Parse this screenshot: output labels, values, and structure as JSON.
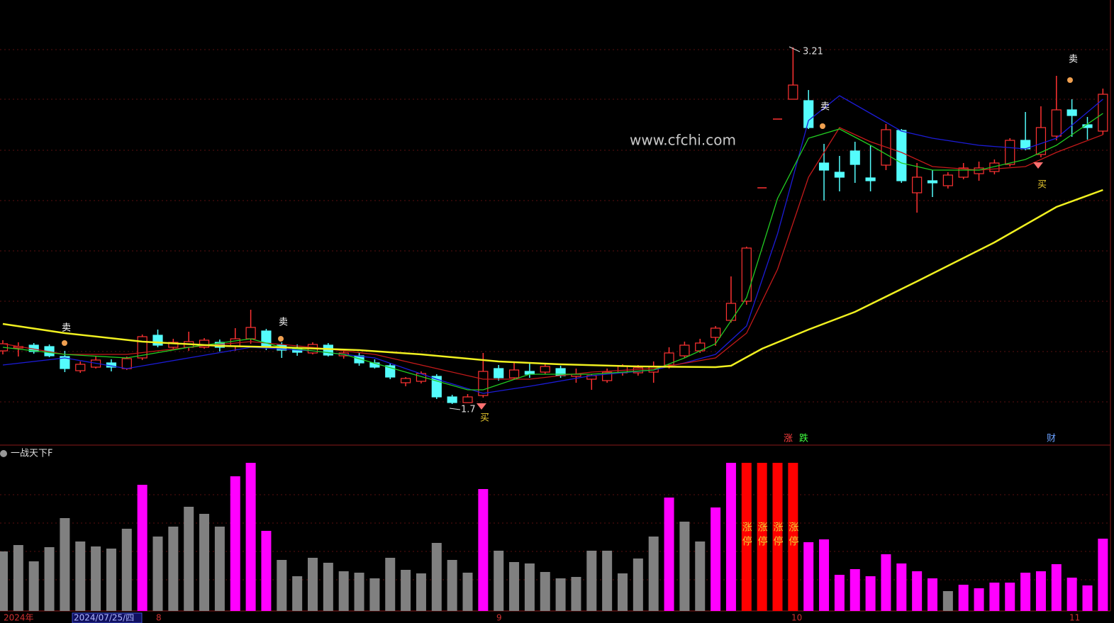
{
  "watermark": "www.cfchi.com",
  "signals": {
    "sell": "卖",
    "buy": "买"
  },
  "markers": {
    "up": "涨",
    "down": "跌",
    "finance": "财"
  },
  "date_bar": {
    "year": "2024年",
    "cursor_date": "2024/07/25/四",
    "months": [
      "8",
      "9",
      "10",
      "11"
    ]
  },
  "chart_data": [
    {
      "type": "candlestick",
      "high_label": "3.21",
      "low_label": "1.7",
      "up_color": "#ff3232",
      "down_color": "#54fcfc",
      "ylim": [
        1.526,
        3.41
      ],
      "open": [
        1.925,
        1.937,
        1.949,
        1.943,
        1.901,
        1.841,
        1.856,
        1.874,
        1.85,
        1.895,
        1.991,
        1.94,
        1.94,
        1.94,
        1.961,
        1.946,
        1.976,
        2.009,
        1.949,
        1.937,
        1.916,
        1.949,
        1.904,
        1.904,
        1.874,
        1.862,
        1.79,
        1.796,
        1.817,
        1.73,
        1.706,
        1.736,
        1.85,
        1.811,
        1.838,
        1.835,
        1.85,
        1.817,
        1.805,
        1.799,
        1.832,
        1.832,
        1.835,
        1.865,
        1.904,
        1.925,
        1.982,
        2.054,
        2.135,
        2.615,
        2.906,
        2.99,
        2.984,
        2.72,
        2.681,
        2.771,
        2.657,
        2.711,
        2.858,
        2.594,
        2.645,
        2.624,
        2.66,
        2.675,
        2.684,
        2.714,
        2.816,
        2.756,
        2.834,
        2.945,
        2.882,
        2.855
      ],
      "high": [
        1.97,
        1.961,
        1.958,
        1.952,
        1.925,
        1.88,
        1.904,
        1.889,
        1.901,
        1.994,
        2.015,
        1.976,
        2.006,
        1.979,
        1.973,
        2.021,
        2.099,
        2.018,
        1.961,
        1.952,
        1.961,
        1.958,
        1.925,
        1.916,
        1.889,
        1.874,
        1.814,
        1.838,
        1.826,
        1.739,
        1.742,
        1.916,
        1.865,
        1.874,
        1.874,
        1.871,
        1.862,
        1.85,
        1.826,
        1.85,
        1.868,
        1.865,
        1.88,
        1.94,
        1.964,
        1.976,
        2.03,
        2.24,
        2.366,
        2.615,
        2.906,
        3.21,
        3.029,
        2.801,
        2.75,
        2.81,
        2.795,
        2.885,
        2.864,
        2.72,
        2.69,
        2.681,
        2.72,
        2.726,
        2.735,
        2.825,
        2.936,
        2.96,
        3.089,
        2.99,
        2.915,
        3.035
      ],
      "low": [
        1.91,
        1.901,
        1.913,
        1.898,
        1.835,
        1.832,
        1.85,
        1.838,
        1.844,
        1.886,
        1.94,
        1.928,
        1.925,
        1.934,
        1.922,
        1.925,
        1.955,
        1.928,
        1.895,
        1.904,
        1.91,
        1.901,
        1.892,
        1.862,
        1.85,
        1.805,
        1.775,
        1.787,
        1.721,
        1.7,
        1.715,
        1.727,
        1.799,
        1.802,
        1.811,
        1.826,
        1.811,
        1.79,
        1.76,
        1.79,
        1.82,
        1.82,
        1.79,
        1.85,
        1.895,
        1.916,
        1.946,
        2.045,
        2.12,
        2.615,
        2.906,
        2.99,
        2.864,
        2.561,
        2.6,
        2.636,
        2.6,
        2.69,
        2.636,
        2.51,
        2.576,
        2.612,
        2.651,
        2.645,
        2.672,
        2.705,
        2.774,
        2.744,
        2.816,
        2.831,
        2.819,
        2.84
      ],
      "close": [
        1.955,
        1.943,
        1.922,
        1.904,
        1.85,
        1.868,
        1.886,
        1.856,
        1.892,
        1.985,
        1.949,
        1.961,
        1.964,
        1.97,
        1.94,
        1.976,
        2.024,
        1.94,
        1.928,
        1.919,
        1.952,
        1.907,
        1.916,
        1.874,
        1.856,
        1.814,
        1.808,
        1.829,
        1.73,
        1.706,
        1.73,
        1.838,
        1.811,
        1.844,
        1.826,
        1.859,
        1.82,
        1.826,
        1.82,
        1.835,
        1.859,
        1.853,
        1.859,
        1.916,
        1.949,
        1.958,
        2.021,
        2.126,
        2.36,
        2.615,
        2.906,
        3.05,
        2.87,
        2.69,
        2.66,
        2.714,
        2.645,
        2.861,
        2.645,
        2.66,
        2.636,
        2.669,
        2.699,
        2.699,
        2.72,
        2.816,
        2.78,
        2.87,
        2.945,
        2.921,
        2.87,
        3.011
      ],
      "lines": [
        {
          "color": "#1c1cd8",
          "x": [
            0,
            4,
            8,
            12,
            16,
            20,
            24,
            28,
            31,
            34,
            38,
            42,
            44,
            46,
            48,
            50,
            52,
            54,
            56,
            58,
            60,
            63,
            66,
            68,
            71
          ],
          "values": [
            1.865,
            1.895,
            1.85,
            1.895,
            1.94,
            1.925,
            1.895,
            1.805,
            1.745,
            1.775,
            1.82,
            1.844,
            1.874,
            1.91,
            2.03,
            2.42,
            2.9,
            3.005,
            2.93,
            2.855,
            2.825,
            2.795,
            2.78,
            2.825,
            2.99
          ]
        },
        {
          "color": "#c41a1a",
          "x": [
            0,
            4,
            8,
            12,
            16,
            20,
            24,
            28,
            31,
            34,
            38,
            42,
            46,
            48,
            50,
            52,
            54,
            56,
            58,
            60,
            63,
            66,
            68,
            71
          ],
          "values": [
            1.955,
            1.91,
            1.91,
            1.94,
            1.964,
            1.94,
            1.91,
            1.85,
            1.805,
            1.805,
            1.835,
            1.85,
            1.895,
            2.0,
            2.27,
            2.66,
            2.87,
            2.81,
            2.765,
            2.705,
            2.69,
            2.705,
            2.765,
            2.84
          ]
        },
        {
          "color": "#22cc22",
          "x": [
            0,
            4,
            8,
            12,
            16,
            18,
            22,
            26,
            30,
            31,
            34,
            38,
            42,
            44,
            46,
            48,
            50,
            52,
            54,
            56,
            58,
            60,
            63,
            66,
            68,
            71
          ],
          "values": [
            1.94,
            1.91,
            1.895,
            1.94,
            1.976,
            1.94,
            1.91,
            1.835,
            1.76,
            1.76,
            1.826,
            1.826,
            1.844,
            1.895,
            1.955,
            2.15,
            2.57,
            2.825,
            2.864,
            2.795,
            2.72,
            2.69,
            2.69,
            2.735,
            2.795,
            2.93
          ]
        },
        {
          "color": "#f0f020",
          "x": [
            0,
            4,
            9,
            14,
            18,
            23,
            27,
            32,
            36,
            41,
            46,
            47,
            49,
            52,
            55,
            59,
            64,
            68,
            71
          ],
          "values": [
            2.039,
            2.0,
            1.964,
            1.946,
            1.94,
            1.928,
            1.91,
            1.88,
            1.868,
            1.859,
            1.856,
            1.862,
            1.934,
            2.015,
            2.09,
            2.219,
            2.384,
            2.534,
            2.606
          ]
        }
      ]
    },
    {
      "type": "bar",
      "title": "一战天下F",
      "annotation": "涨停",
      "annotation_indices": [
        48,
        49,
        50,
        51
      ],
      "ylim": [
        0,
        215
      ],
      "values": [
        84,
        93,
        70,
        90,
        131,
        98,
        91,
        88,
        116,
        178,
        105,
        119,
        147,
        137,
        119,
        190,
        209,
        113,
        72,
        49,
        75,
        68,
        56,
        54,
        46,
        75,
        58,
        53,
        96,
        72,
        54,
        172,
        85,
        69,
        67,
        55,
        46,
        48,
        85,
        85,
        53,
        74,
        105,
        160,
        126,
        98,
        146,
        209,
        209,
        209,
        209,
        209,
        97,
        101,
        51,
        59,
        49,
        80,
        67,
        56,
        46,
        28,
        37,
        32,
        40,
        40,
        54,
        56,
        66,
        47,
        36,
        102
      ],
      "colors": [
        "#808080",
        "#808080",
        "#808080",
        "#808080",
        "#808080",
        "#808080",
        "#808080",
        "#808080",
        "#808080",
        "#ff00ff",
        "#808080",
        "#808080",
        "#808080",
        "#808080",
        "#808080",
        "#ff00ff",
        "#ff00ff",
        "#ff00ff",
        "#808080",
        "#808080",
        "#808080",
        "#808080",
        "#808080",
        "#808080",
        "#808080",
        "#808080",
        "#808080",
        "#808080",
        "#808080",
        "#808080",
        "#808080",
        "#ff00ff",
        "#808080",
        "#808080",
        "#808080",
        "#808080",
        "#808080",
        "#808080",
        "#808080",
        "#808080",
        "#808080",
        "#808080",
        "#808080",
        "#ff00ff",
        "#808080",
        "#808080",
        "#ff00ff",
        "#ff00ff",
        "#ff0000",
        "#ff0000",
        "#ff0000",
        "#ff0000",
        "#ff00ff",
        "#ff00ff",
        "#ff00ff",
        "#ff00ff",
        "#ff00ff",
        "#ff00ff",
        "#ff00ff",
        "#ff00ff",
        "#ff00ff",
        "#808080",
        "#ff00ff",
        "#ff00ff",
        "#ff00ff",
        "#ff00ff",
        "#ff00ff",
        "#ff00ff",
        "#ff00ff",
        "#ff00ff",
        "#ff00ff",
        "#ff00ff"
      ]
    }
  ]
}
